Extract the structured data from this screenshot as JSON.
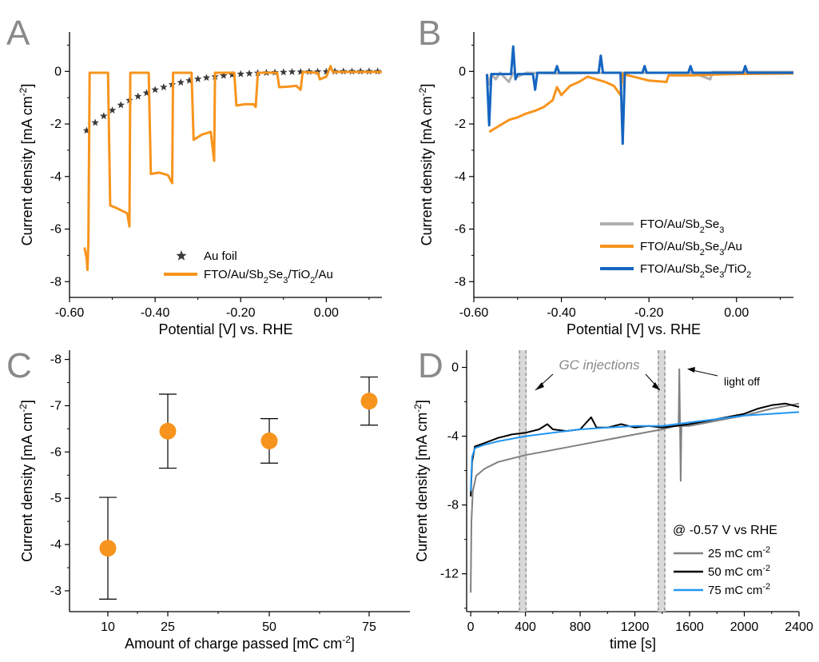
{
  "chart_data": [
    {
      "panel": "A",
      "type": "line",
      "xlabel": "Potential [V] vs. RHE",
      "ylabel": "Current density [mA cm⁻²]",
      "xlim": [
        -0.6,
        0.13
      ],
      "ylim": [
        -8.6,
        1.5
      ],
      "xticks": [
        -0.6,
        -0.4,
        -0.2,
        0.0
      ],
      "xtick_labels": [
        "-0.60",
        "-0.40",
        "-0.20",
        "0.00"
      ],
      "yticks": [
        0,
        -2,
        -4,
        -6,
        -8
      ],
      "ytick_labels": [
        "0",
        "-2",
        "-4",
        "-6",
        "-8"
      ],
      "series": [
        {
          "name": "Au foil",
          "style": "star",
          "color": "#3a3a3a",
          "points": [
            [
              -0.56,
              -2.25
            ],
            [
              -0.54,
              -1.95
            ],
            [
              -0.52,
              -1.7
            ],
            [
              -0.5,
              -1.48
            ],
            [
              -0.48,
              -1.28
            ],
            [
              -0.46,
              -1.1
            ],
            [
              -0.44,
              -0.95
            ],
            [
              -0.42,
              -0.82
            ],
            [
              -0.4,
              -0.7
            ],
            [
              -0.38,
              -0.6
            ],
            [
              -0.36,
              -0.5
            ],
            [
              -0.34,
              -0.42
            ],
            [
              -0.32,
              -0.35
            ],
            [
              -0.3,
              -0.29
            ],
            [
              -0.28,
              -0.24
            ],
            [
              -0.26,
              -0.2
            ],
            [
              -0.24,
              -0.16
            ],
            [
              -0.22,
              -0.13
            ],
            [
              -0.2,
              -0.1
            ],
            [
              -0.18,
              -0.08
            ],
            [
              -0.16,
              -0.06
            ],
            [
              -0.14,
              -0.05
            ],
            [
              -0.12,
              -0.04
            ],
            [
              -0.1,
              -0.03
            ],
            [
              -0.08,
              -0.02
            ],
            [
              -0.06,
              -0.02
            ],
            [
              -0.04,
              -0.01
            ],
            [
              -0.02,
              -0.01
            ],
            [
              0.0,
              -0.01
            ],
            [
              0.02,
              0.0
            ],
            [
              0.04,
              0.0
            ],
            [
              0.06,
              0.0
            ],
            [
              0.08,
              0.0
            ],
            [
              0.1,
              0.0
            ],
            [
              0.12,
              0.0
            ]
          ]
        },
        {
          "name": "FTO/Au/Sb₂Se₃/TiO₂/Au",
          "style": "line",
          "color": "#f7941d",
          "points": [
            [
              -0.565,
              -6.7
            ],
            [
              -0.56,
              -7.1
            ],
            [
              -0.558,
              -7.55
            ],
            [
              -0.556,
              -6.5
            ],
            [
              -0.553,
              -0.05
            ],
            [
              -0.51,
              -0.05
            ],
            [
              -0.505,
              -5.1
            ],
            [
              -0.49,
              -5.2
            ],
            [
              -0.465,
              -5.4
            ],
            [
              -0.46,
              -5.9
            ],
            [
              -0.458,
              -0.05
            ],
            [
              -0.415,
              -0.05
            ],
            [
              -0.41,
              -3.9
            ],
            [
              -0.39,
              -3.85
            ],
            [
              -0.37,
              -3.95
            ],
            [
              -0.36,
              -4.25
            ],
            [
              -0.358,
              -0.05
            ],
            [
              -0.315,
              -0.05
            ],
            [
              -0.31,
              -2.6
            ],
            [
              -0.29,
              -2.4
            ],
            [
              -0.27,
              -2.3
            ],
            [
              -0.262,
              -3.4
            ],
            [
              -0.26,
              -0.05
            ],
            [
              -0.215,
              -0.05
            ],
            [
              -0.21,
              -1.3
            ],
            [
              -0.19,
              -1.25
            ],
            [
              -0.17,
              -1.25
            ],
            [
              -0.165,
              -1.35
            ],
            [
              -0.16,
              -0.05
            ],
            [
              -0.115,
              -0.05
            ],
            [
              -0.11,
              -0.6
            ],
            [
              -0.09,
              -0.58
            ],
            [
              -0.07,
              -0.55
            ],
            [
              -0.06,
              -0.7
            ],
            [
              -0.055,
              -0.02
            ],
            [
              -0.02,
              -0.05
            ],
            [
              -0.015,
              -0.3
            ],
            [
              0.0,
              -0.2
            ],
            [
              0.01,
              0.2
            ],
            [
              0.015,
              -0.02
            ],
            [
              0.13,
              -0.02
            ]
          ]
        }
      ]
    },
    {
      "panel": "B",
      "type": "line",
      "xlabel": "Potential [V] vs. RHE",
      "ylabel": "Current density [mA cm⁻²]",
      "xlim": [
        -0.6,
        0.13
      ],
      "ylim": [
        -8.6,
        1.5
      ],
      "xticks": [
        -0.6,
        -0.4,
        -0.2,
        0.0
      ],
      "xtick_labels": [
        "-0.60",
        "-0.40",
        "-0.20",
        "0.00"
      ],
      "yticks": [
        0,
        -2,
        -4,
        -6,
        -8
      ],
      "ytick_labels": [
        "0",
        "-2",
        "-4",
        "-6",
        "-8"
      ],
      "series": [
        {
          "name": "FTO/Au/Sb₂Se₃",
          "style": "line",
          "color": "#b0b0b0",
          "points": [
            [
              -0.57,
              -0.1
            ],
            [
              -0.565,
              -0.5
            ],
            [
              -0.56,
              -0.1
            ],
            [
              -0.55,
              -0.3
            ],
            [
              -0.54,
              -0.05
            ],
            [
              -0.52,
              -0.4
            ],
            [
              -0.51,
              -0.05
            ],
            [
              -0.5,
              -0.2
            ],
            [
              -0.48,
              -0.05
            ],
            [
              -0.4,
              -0.08
            ],
            [
              -0.3,
              -0.05
            ],
            [
              -0.2,
              -0.05
            ],
            [
              -0.1,
              -0.05
            ],
            [
              -0.06,
              -0.3
            ],
            [
              -0.055,
              -0.02
            ],
            [
              0.0,
              -0.02
            ],
            [
              0.13,
              -0.02
            ]
          ]
        },
        {
          "name": "FTO/Au/Sb₂Se₃/Au",
          "style": "line",
          "color": "#f7941d",
          "points": [
            [
              -0.565,
              -2.3
            ],
            [
              -0.55,
              -2.15
            ],
            [
              -0.52,
              -1.85
            ],
            [
              -0.5,
              -1.75
            ],
            [
              -0.48,
              -1.6
            ],
            [
              -0.46,
              -1.5
            ],
            [
              -0.44,
              -1.35
            ],
            [
              -0.42,
              -1.1
            ],
            [
              -0.41,
              -0.6
            ],
            [
              -0.4,
              -0.9
            ],
            [
              -0.38,
              -0.55
            ],
            [
              -0.36,
              -0.4
            ],
            [
              -0.34,
              -0.2
            ],
            [
              -0.3,
              -0.4
            ],
            [
              -0.28,
              -0.55
            ],
            [
              -0.265,
              -0.9
            ],
            [
              -0.26,
              -0.1
            ],
            [
              -0.2,
              -0.35
            ],
            [
              -0.16,
              -0.4
            ],
            [
              -0.155,
              -0.15
            ],
            [
              -0.1,
              -0.15
            ],
            [
              -0.05,
              -0.12
            ],
            [
              0.0,
              -0.1
            ],
            [
              0.13,
              -0.08
            ]
          ]
        },
        {
          "name": "FTO/Au/Sb₂Se₃/TiO₂",
          "style": "line",
          "color": "#1565c0",
          "points": [
            [
              -0.57,
              -0.1
            ],
            [
              -0.565,
              -2.05
            ],
            [
              -0.56,
              -0.1
            ],
            [
              -0.515,
              -0.1
            ],
            [
              -0.51,
              0.95
            ],
            [
              -0.505,
              -0.3
            ],
            [
              -0.5,
              -0.1
            ],
            [
              -0.465,
              -0.1
            ],
            [
              -0.46,
              -0.7
            ],
            [
              -0.455,
              -0.05
            ],
            [
              -0.415,
              -0.05
            ],
            [
              -0.41,
              0.2
            ],
            [
              -0.405,
              -0.05
            ],
            [
              -0.315,
              -0.05
            ],
            [
              -0.31,
              0.6
            ],
            [
              -0.305,
              -0.05
            ],
            [
              -0.265,
              -0.05
            ],
            [
              -0.26,
              -2.75
            ],
            [
              -0.255,
              -0.05
            ],
            [
              -0.215,
              -0.05
            ],
            [
              -0.21,
              0.2
            ],
            [
              -0.205,
              -0.05
            ],
            [
              -0.11,
              -0.05
            ],
            [
              -0.105,
              0.2
            ],
            [
              -0.1,
              -0.05
            ],
            [
              0.015,
              -0.05
            ],
            [
              0.02,
              0.2
            ],
            [
              0.025,
              -0.05
            ],
            [
              0.13,
              -0.05
            ]
          ]
        }
      ]
    },
    {
      "panel": "C",
      "type": "scatter",
      "xlabel": "Amount of charge passed [mC cm⁻²]",
      "ylabel": "Current density [mA cm⁻²]",
      "categories": [
        "10",
        "25",
        "50",
        "75"
      ],
      "values": [
        -3.92,
        -6.45,
        -6.24,
        -7.1
      ],
      "errors": [
        1.1,
        0.8,
        0.48,
        0.52
      ],
      "ylim": [
        -2.55,
        -8.2
      ],
      "yticks": [
        -3,
        -4,
        -5,
        -6,
        -7,
        -8
      ],
      "ytick_labels": [
        "-3",
        "-4",
        "-5",
        "-6",
        "-7",
        "-8"
      ],
      "color": "#f7941d"
    },
    {
      "panel": "D",
      "type": "line",
      "xlabel": "time [s]",
      "ylabel": "Current density [mA cm⁻²]",
      "xlim": [
        -30,
        2400
      ],
      "ylim": [
        -14.2,
        1.0
      ],
      "xticks": [
        0,
        400,
        800,
        1200,
        1600,
        2000,
        2400
      ],
      "xtick_labels": [
        "0",
        "400",
        "800",
        "1200",
        "1600",
        "2000",
        "2400"
      ],
      "yticks": [
        0,
        -4,
        -8,
        -12
      ],
      "ytick_labels": [
        "0",
        "-4",
        "-8",
        "-12"
      ],
      "gc_injections": [
        380,
        1395
      ],
      "annotations": {
        "gc": "GC injections",
        "light_off": "light off",
        "condition": "@ -0.57 V vs RHE"
      },
      "series": [
        {
          "name": "25 mC cm⁻²",
          "color": "#808080",
          "points": [
            [
              0,
              -13.1
            ],
            [
              5,
              -9
            ],
            [
              15,
              -7.2
            ],
            [
              40,
              -6.3
            ],
            [
              100,
              -5.9
            ],
            [
              200,
              -5.5
            ],
            [
              400,
              -5.1
            ],
            [
              600,
              -4.8
            ],
            [
              800,
              -4.5
            ],
            [
              1000,
              -4.2
            ],
            [
              1200,
              -3.9
            ],
            [
              1400,
              -3.6
            ],
            [
              1500,
              -3.4
            ],
            [
              1520,
              -3.4
            ],
            [
              1525,
              -0.1
            ],
            [
              1530,
              -3.5
            ],
            [
              1535,
              -6.6
            ],
            [
              1540,
              -3.4
            ],
            [
              1600,
              -3.4
            ],
            [
              1800,
              -3.1
            ],
            [
              2000,
              -2.8
            ],
            [
              2200,
              -2.4
            ],
            [
              2400,
              -2.1
            ]
          ]
        },
        {
          "name": "50 mC cm⁻²",
          "color": "#000000",
          "points": [
            [
              0,
              -7.5
            ],
            [
              10,
              -5.5
            ],
            [
              30,
              -4.6
            ],
            [
              100,
              -4.4
            ],
            [
              200,
              -4.1
            ],
            [
              300,
              -3.9
            ],
            [
              400,
              -3.8
            ],
            [
              500,
              -3.6
            ],
            [
              560,
              -3.3
            ],
            [
              600,
              -3.6
            ],
            [
              700,
              -3.7
            ],
            [
              800,
              -3.6
            ],
            [
              880,
              -2.9
            ],
            [
              920,
              -3.5
            ],
            [
              1000,
              -3.5
            ],
            [
              1100,
              -3.3
            ],
            [
              1200,
              -3.5
            ],
            [
              1300,
              -3.4
            ],
            [
              1400,
              -3.5
            ],
            [
              1500,
              -3.4
            ],
            [
              1600,
              -3.3
            ],
            [
              1800,
              -3.0
            ],
            [
              2000,
              -2.7
            ],
            [
              2100,
              -2.4
            ],
            [
              2200,
              -2.2
            ],
            [
              2300,
              -2.1
            ],
            [
              2400,
              -2.3
            ]
          ]
        },
        {
          "name": "75 mC cm⁻²",
          "color": "#2196f3",
          "points": [
            [
              0,
              -7.2
            ],
            [
              10,
              -5.2
            ],
            [
              30,
              -4.7
            ],
            [
              100,
              -4.5
            ],
            [
              200,
              -4.3
            ],
            [
              400,
              -4.0
            ],
            [
              600,
              -3.8
            ],
            [
              800,
              -3.6
            ],
            [
              1000,
              -3.5
            ],
            [
              1200,
              -3.4
            ],
            [
              1400,
              -3.4
            ],
            [
              1600,
              -3.2
            ],
            [
              1800,
              -3.0
            ],
            [
              2000,
              -2.8
            ],
            [
              2200,
              -2.7
            ],
            [
              2400,
              -2.6
            ]
          ]
        }
      ]
    }
  ]
}
